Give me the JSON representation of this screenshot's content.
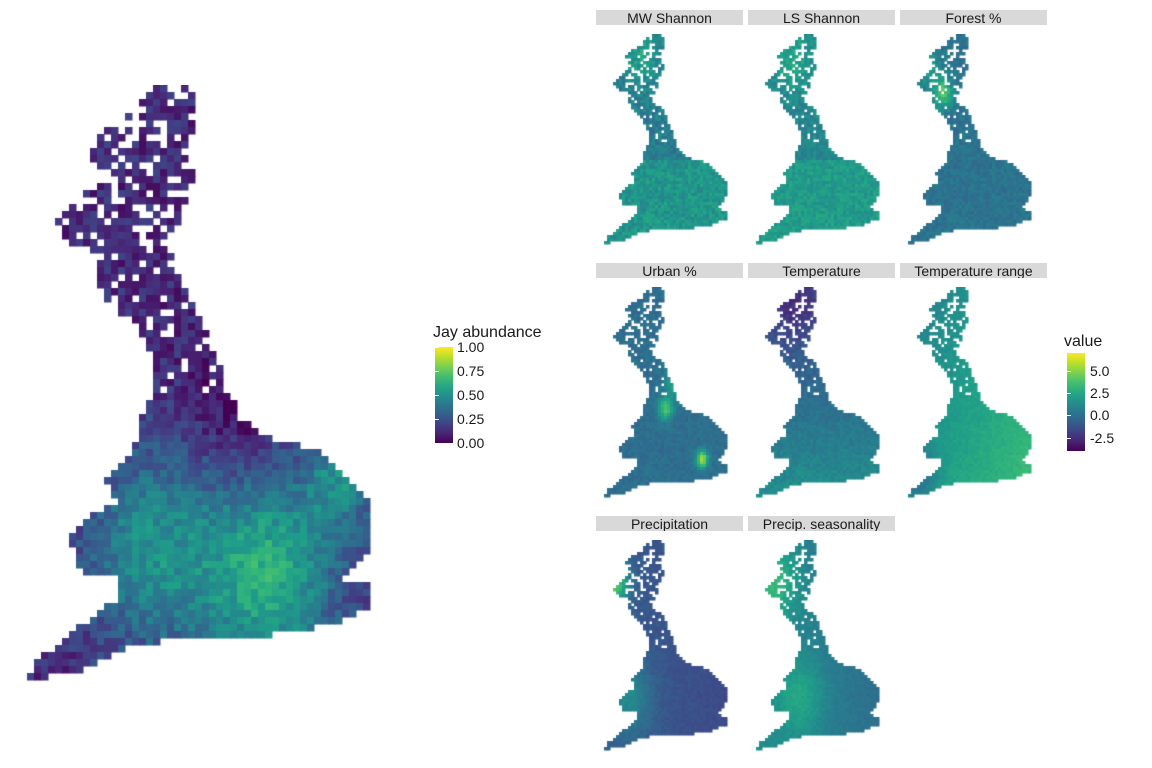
{
  "main_map": {
    "legend": {
      "title": "Jay abundance",
      "ticks": [
        "1.00",
        "0.75",
        "0.50",
        "0.25",
        "0.00"
      ],
      "tick_values": [
        1.0,
        0.75,
        0.5,
        0.25,
        0.0
      ],
      "range": [
        0,
        1
      ]
    }
  },
  "facets": [
    {
      "title": "MW Shannon",
      "theme": "mw"
    },
    {
      "title": "LS Shannon",
      "theme": "ls"
    },
    {
      "title": "Forest %",
      "theme": "forest"
    },
    {
      "title": "Urban %",
      "theme": "urban"
    },
    {
      "title": "Temperature",
      "theme": "temp"
    },
    {
      "title": "Temperature range",
      "theme": "trange"
    },
    {
      "title": "Precipitation",
      "theme": "precip"
    },
    {
      "title": "Precip. seasonality",
      "theme": "pseason"
    }
  ],
  "facet_legend": {
    "title": "value",
    "ticks": [
      "5.0",
      "2.5",
      "0.0",
      "-2.5"
    ],
    "tick_values": [
      5.0,
      2.5,
      0.0,
      -2.5
    ],
    "range": [
      -4,
      7
    ]
  },
  "colors": {
    "viridis": [
      "#440154",
      "#482878",
      "#3e4989",
      "#31688e",
      "#26828e",
      "#1f9e89",
      "#35b779",
      "#6ece58",
      "#b5de2b",
      "#fde725"
    ],
    "strip_background": "#d9d9d9",
    "background": "#ffffff"
  },
  "colormap": "viridis"
}
